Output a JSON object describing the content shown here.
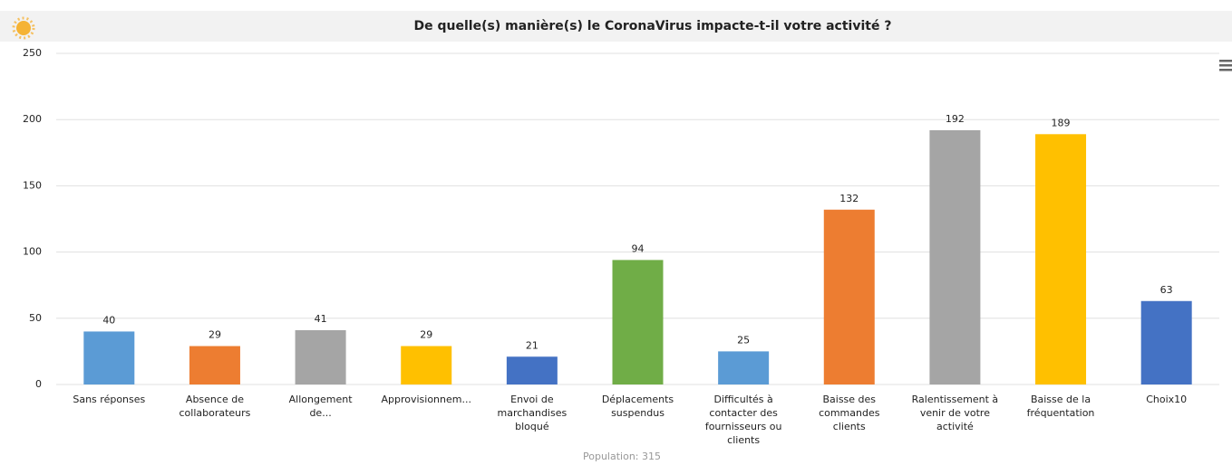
{
  "chart_data": {
    "type": "bar",
    "title": "De quelle(s) manière(s) le CoronaVirus impacte-t-il votre activité ?",
    "subtitle": "Population: 315",
    "categories": [
      "Sans réponses",
      "Absence de collaborateurs",
      "Allongement de...",
      "Approvisionnem...",
      "Envoi de marchandises bloqué",
      "Déplacements suspendus",
      "Difficultés à contacter des fournisseurs ou clients",
      "Baisse des commandes clients",
      "Ralentissement à venir de votre activité",
      "Baisse de la fréquentation",
      "Choix10"
    ],
    "values": [
      40,
      29,
      41,
      29,
      21,
      94,
      25,
      132,
      192,
      189,
      63
    ],
    "colors": [
      "#5b9bd5",
      "#ed7d31",
      "#a5a5a5",
      "#ffc000",
      "#4472c4",
      "#70ad47",
      "#5b9bd5",
      "#ed7d31",
      "#a5a5a5",
      "#ffc000",
      "#4472c4"
    ],
    "ylim": [
      0,
      250
    ],
    "yticks": [
      0,
      50,
      100,
      150,
      200,
      250
    ],
    "grid": true
  }
}
